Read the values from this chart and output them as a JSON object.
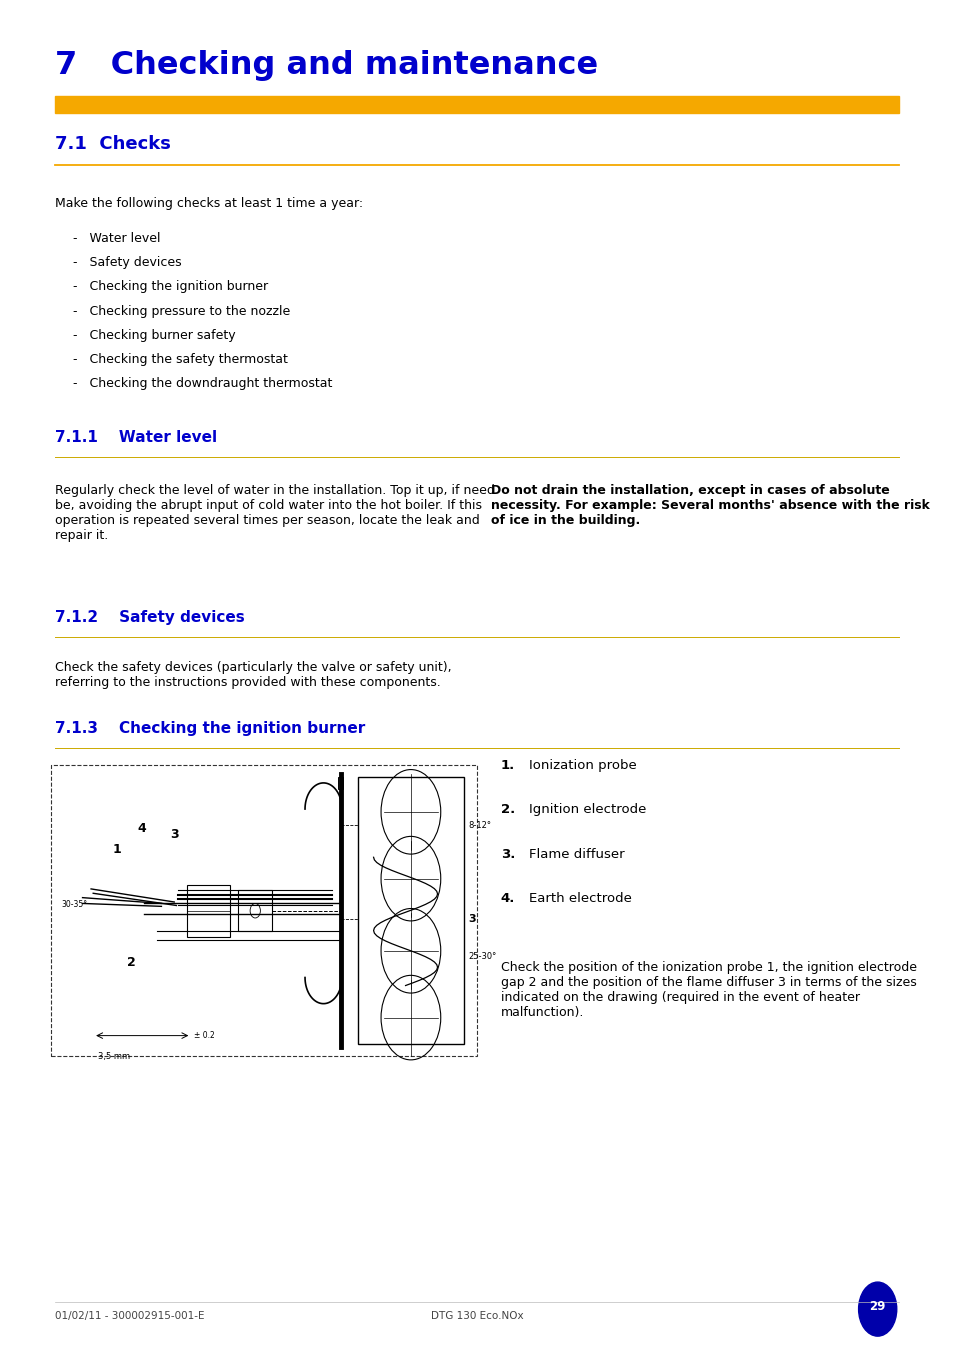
{
  "page_bg": "#ffffff",
  "title": "7   Checking and maintenance",
  "title_color": "#0000cc",
  "title_bar_color": "#f5a800",
  "section_color": "#0000cc",
  "section_line_color": "#ccaa00",
  "body_text_color": "#000000",
  "section_71_title": "7.1  Checks",
  "section_711_title": "7.1.1    Water level",
  "section_712_title": "7.1.2    Safety devices",
  "section_713_title": "7.1.3    Checking the ignition burner",
  "checks_intro": "Make the following checks at least 1 time a year:",
  "checks_items": [
    "Water level",
    "Safety devices",
    "Checking the ignition burner",
    "Checking pressure to the nozzle",
    "Checking burner safety",
    "Checking the safety thermostat",
    "Checking the downdraught thermostat"
  ],
  "numbered_items": [
    "Ionization probe",
    "Ignition electrode",
    "Flame diffuser",
    "Earth electrode"
  ],
  "footer_left": "01/02/11 - 300002915-001-E",
  "footer_center": "DTG 130 Eco.NOx",
  "footer_page": "29",
  "ml": 0.058,
  "mr": 0.058,
  "col_split": 0.505
}
